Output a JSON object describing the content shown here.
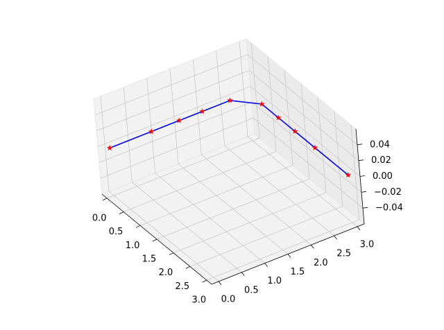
{
  "chart_data": {
    "type": "line3d",
    "series": [
      {
        "color": "#0000ff",
        "marker_color": "#ff0000",
        "marker": "star",
        "x": [
          0,
          0,
          0,
          0,
          0,
          0.4,
          0.9,
          1.4,
          2.0,
          3.0
        ],
        "y": [
          0,
          0.9,
          1.5,
          2.0,
          2.6,
          3,
          3,
          3,
          3,
          3
        ],
        "z": [
          0,
          0,
          0,
          0,
          0,
          0,
          0,
          0,
          0,
          0
        ]
      }
    ],
    "xlim": [
      -0.15,
      3.15
    ],
    "ylim": [
      -0.15,
      3.15
    ],
    "zlim": [
      -0.06,
      0.06
    ],
    "xticks": [
      {
        "value": 0,
        "label": "0.0"
      },
      {
        "value": 0.5,
        "label": "0.5"
      },
      {
        "value": 1,
        "label": "1.0"
      },
      {
        "value": 1.5,
        "label": "1.5"
      },
      {
        "value": 2,
        "label": "2.0"
      },
      {
        "value": 2.5,
        "label": "2.5"
      },
      {
        "value": 3,
        "label": "3.0"
      }
    ],
    "yticks": [
      {
        "value": 0,
        "label": "0.0"
      },
      {
        "value": 0.5,
        "label": "0.5"
      },
      {
        "value": 1,
        "label": "1.0"
      },
      {
        "value": 1.5,
        "label": "1.5"
      },
      {
        "value": 2,
        "label": "2.0"
      },
      {
        "value": 2.5,
        "label": "2.5"
      },
      {
        "value": 3,
        "label": "3.0"
      }
    ],
    "zticks": [
      {
        "value": -0.04,
        "label": "−0.04"
      },
      {
        "value": -0.02,
        "label": "−0.02"
      },
      {
        "value": 0,
        "label": "0.00"
      },
      {
        "value": 0.02,
        "label": "0.02"
      },
      {
        "value": 0.04,
        "label": "0.04"
      }
    ],
    "grid": true
  }
}
